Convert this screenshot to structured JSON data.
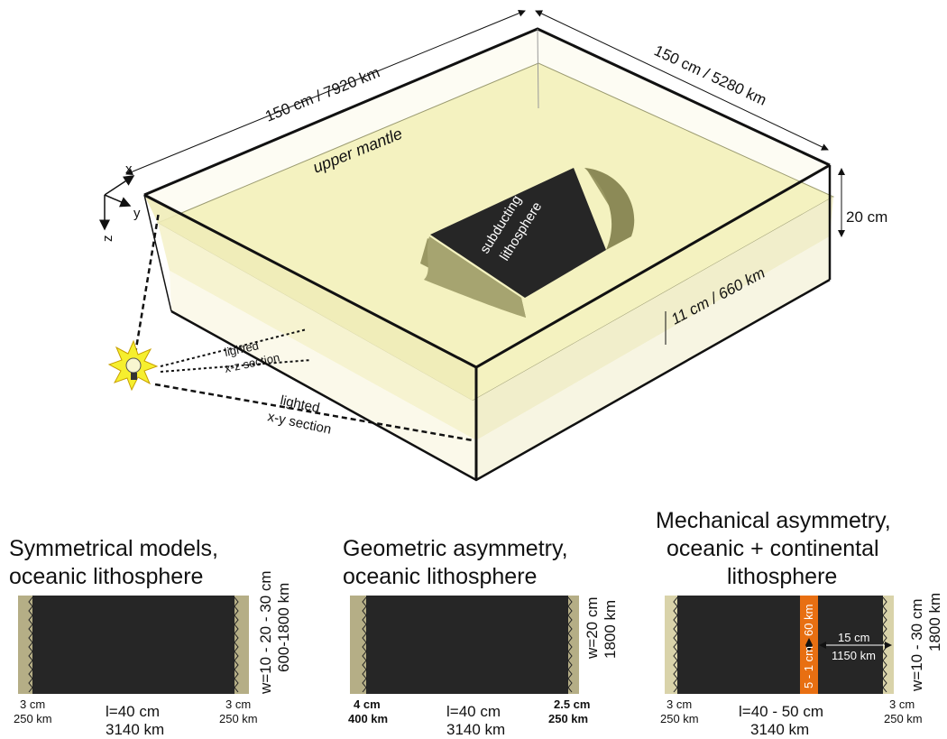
{
  "box": {
    "length_label": "150 cm / 7920 km",
    "width_label": "150 cm / 5280 km",
    "height_label": "20 cm",
    "mantle_depth_label": "11 cm / 660 km",
    "upper_mantle_label": "upper mantle",
    "subducting_label_line1": "subducting",
    "subducting_label_line2": "lithosphere",
    "axes": {
      "x": "x",
      "y": "y",
      "z": "z"
    },
    "xz_section_line1": "lighted",
    "xz_section_line2": "x-z section",
    "xy_section_line1": "lighted",
    "xy_section_line2": "x-y section"
  },
  "panels": [
    {
      "title_line1": "Symmetrical models,",
      "title_line2": "oceanic lithosphere",
      "width_line1": "w=10 - 20 - 30 cm",
      "width_line2": "600-1800 km",
      "left_margin_line1": "3 cm",
      "left_margin_line2": "250 km",
      "right_margin_line1": "3 cm",
      "right_margin_line2": "250 km",
      "length_line1": "l=40 cm",
      "length_line2": "3140 km"
    },
    {
      "title_line1": "Geometric asymmetry,",
      "title_line2": "oceanic lithosphere",
      "width_line1": "w=20 cm",
      "width_line2": "1800 km",
      "left_margin_line1": "4 cm",
      "left_margin_line2": "400 km",
      "right_margin_line1": "2.5 cm",
      "right_margin_line2": "250 km",
      "length_line1": "l=40 cm",
      "length_line2": "3140 km"
    },
    {
      "title_line1": "Mechanical asymmetry,",
      "title_line2": "oceanic + continental",
      "title_line3": "lithosphere",
      "width_line1": "w=10 - 30 cm",
      "width_line2": "1800 km",
      "left_margin_line1": "3 cm",
      "left_margin_line2": "250 km",
      "right_margin_line1": "3 cm",
      "right_margin_line2": "250 km",
      "length_line1": "l=40 - 50 cm",
      "length_line2": "3140 km",
      "continent_line1": "15 cm",
      "continent_line2": "1150 km",
      "strip_thickness": "5 - 1 cm",
      "strip_depth": "60 km"
    }
  ],
  "colors": {
    "mantle": "#f4f2c0",
    "mantle_dark": "#eeeab0",
    "lithosphere": "#262626",
    "slab_edge": "#9a9863",
    "margin": "#b5ae86",
    "continent": "#d9d3aa",
    "weak_zone": "#e86f12",
    "bulb": "#f6ef2e"
  }
}
